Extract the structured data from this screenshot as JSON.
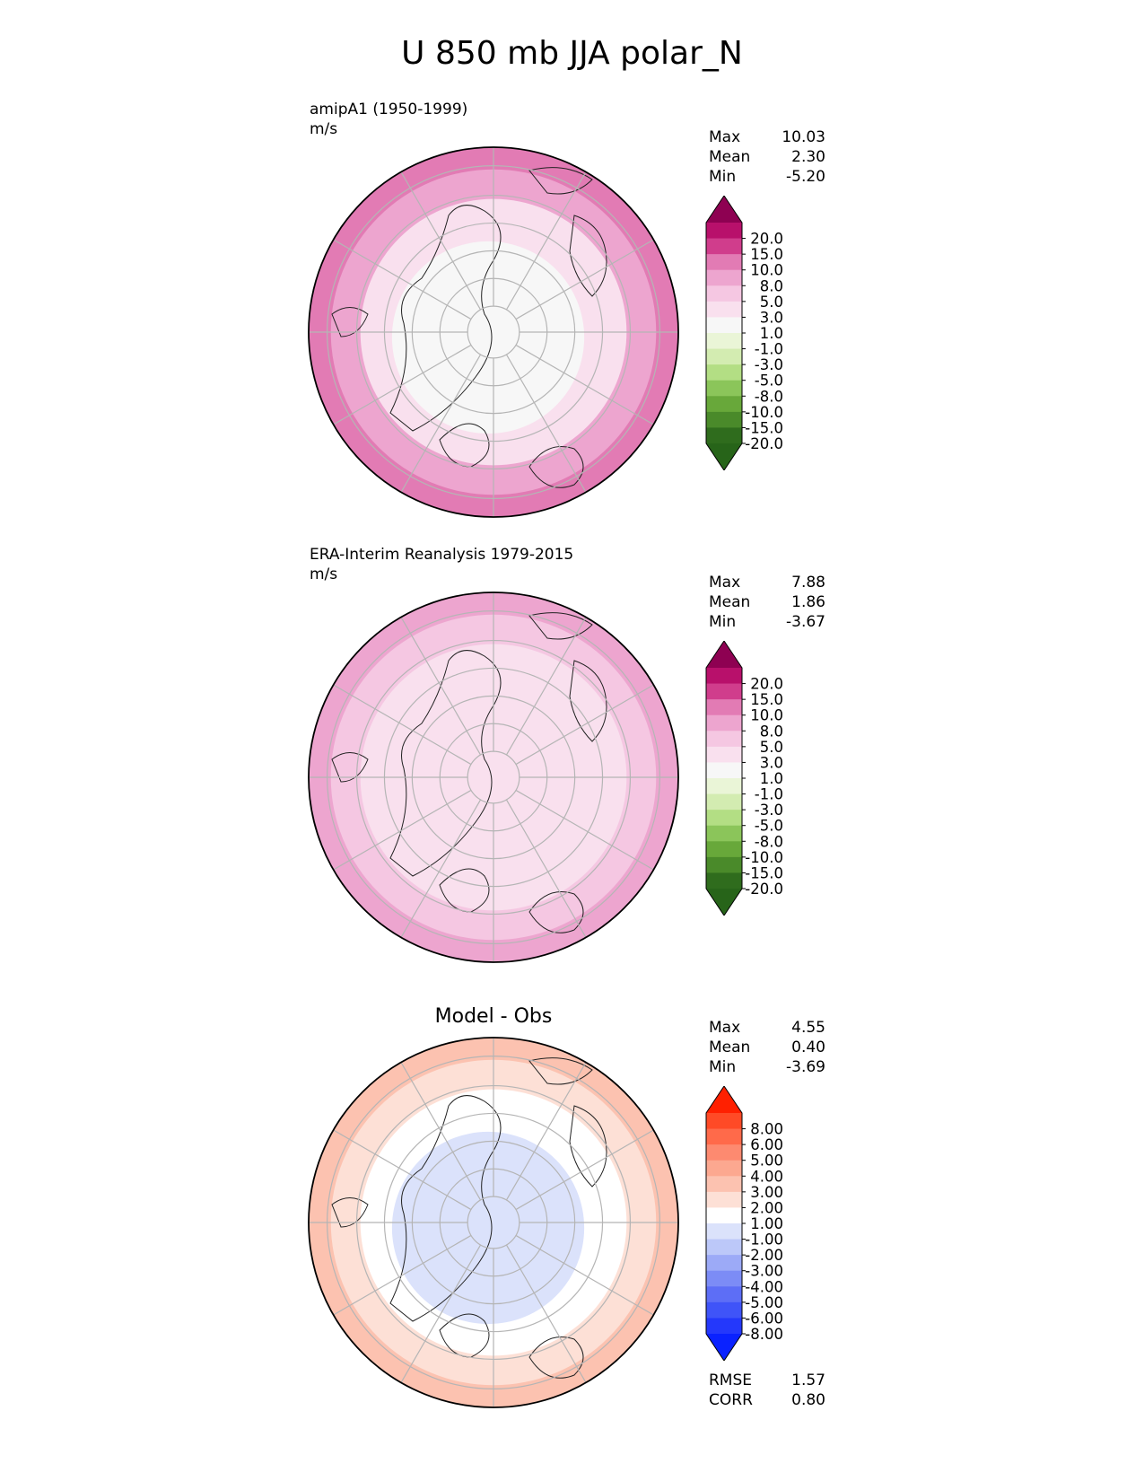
{
  "figure_title": "U 850 mb JJA polar_N",
  "chart_data": [
    {
      "type": "heatmap",
      "projection": "north polar stereographic",
      "label": "amipA1 (1950-1999)",
      "units": "m/s",
      "stats": [
        {
          "name": "Max",
          "value": "10.03"
        },
        {
          "name": "Mean",
          "value": "2.30"
        },
        {
          "name": "Min",
          "value": "-5.20"
        }
      ],
      "colorbar": {
        "extend": "both",
        "levels": [
          -20,
          -15,
          -10,
          -8,
          -5,
          -3,
          -1,
          1,
          3,
          5,
          8,
          10,
          15,
          20
        ],
        "tick_labels": [
          "20.0",
          "15.0",
          "10.0",
          "8.0",
          "5.0",
          "3.0",
          "1.0",
          "-1.0",
          "-3.0",
          "-5.0",
          "-8.0",
          "-10.0",
          "-15.0",
          "-20.0"
        ],
        "colors_top_to_bottom": [
          "#8e0152",
          "#b8106b",
          "#d03d8c",
          "#e27bb4",
          "#eda5cf",
          "#f5c7e2",
          "#f9e0ee",
          "#f7f7f7",
          "#eaf5d7",
          "#d3ecb1",
          "#b3de84",
          "#8bc55a",
          "#68a83a",
          "#4a8a2a",
          "#2f6c1d",
          "#276419"
        ]
      },
      "field": {
        "high_lat_color": "#f7f7f7",
        "mid_lat_color": "#f9e0ee",
        "low_lat_color": "#eda5cf",
        "edge_color": "#e27bb4"
      }
    },
    {
      "type": "heatmap",
      "projection": "north polar stereographic",
      "label": "ERA-Interim Reanalysis 1979-2015",
      "units": "m/s",
      "stats": [
        {
          "name": "Max",
          "value": "7.88"
        },
        {
          "name": "Mean",
          "value": "1.86"
        },
        {
          "name": "Min",
          "value": "-3.67"
        }
      ],
      "colorbar": {
        "extend": "both",
        "levels": [
          -20,
          -15,
          -10,
          -8,
          -5,
          -3,
          -1,
          1,
          3,
          5,
          8,
          10,
          15,
          20
        ],
        "tick_labels": [
          "20.0",
          "15.0",
          "10.0",
          "8.0",
          "5.0",
          "3.0",
          "1.0",
          "-1.0",
          "-3.0",
          "-5.0",
          "-8.0",
          "-10.0",
          "-15.0",
          "-20.0"
        ],
        "colors_top_to_bottom": [
          "#8e0152",
          "#b8106b",
          "#d03d8c",
          "#e27bb4",
          "#eda5cf",
          "#f5c7e2",
          "#f9e0ee",
          "#f7f7f7",
          "#eaf5d7",
          "#d3ecb1",
          "#b3de84",
          "#8bc55a",
          "#68a83a",
          "#4a8a2a",
          "#2f6c1d",
          "#276419"
        ]
      },
      "field": {
        "high_lat_color": "#f9e0ee",
        "mid_lat_color": "#f9e0ee",
        "low_lat_color": "#f5c7e2",
        "edge_color": "#eda5cf"
      }
    },
    {
      "type": "heatmap",
      "projection": "north polar stereographic",
      "label": "Model - Obs",
      "units": "",
      "stats": [
        {
          "name": "Max",
          "value": "4.55"
        },
        {
          "name": "Mean",
          "value": "0.40"
        },
        {
          "name": "Min",
          "value": "-3.69"
        }
      ],
      "metrics": [
        {
          "name": "RMSE",
          "value": "1.57"
        },
        {
          "name": "CORR",
          "value": "0.80"
        }
      ],
      "colorbar": {
        "extend": "both",
        "levels": [
          -8,
          -6,
          -5,
          -4,
          -3,
          -2,
          -1,
          1,
          2,
          3,
          4,
          5,
          6,
          8
        ],
        "tick_labels": [
          "8.00",
          "6.00",
          "5.00",
          "4.00",
          "3.00",
          "2.00",
          "1.00",
          "-1.00",
          "-2.00",
          "-3.00",
          "-4.00",
          "-5.00",
          "-6.00",
          "-8.00"
        ],
        "colors_top_to_bottom": [
          "#ff2000",
          "#ff4a26",
          "#ff6a4a",
          "#fd8a70",
          "#fca890",
          "#fcc2b0",
          "#fde0d6",
          "#ffffff",
          "#dbe2fb",
          "#bcc8f9",
          "#9caaf7",
          "#7c8cf6",
          "#5d6ef6",
          "#3f54f8",
          "#2438fb",
          "#0a22ff"
        ]
      },
      "field": {
        "high_lat_color": "#dbe2fb",
        "mid_lat_color": "#ffffff",
        "low_lat_color": "#fde0d6",
        "edge_color": "#fcc2b0"
      }
    }
  ]
}
